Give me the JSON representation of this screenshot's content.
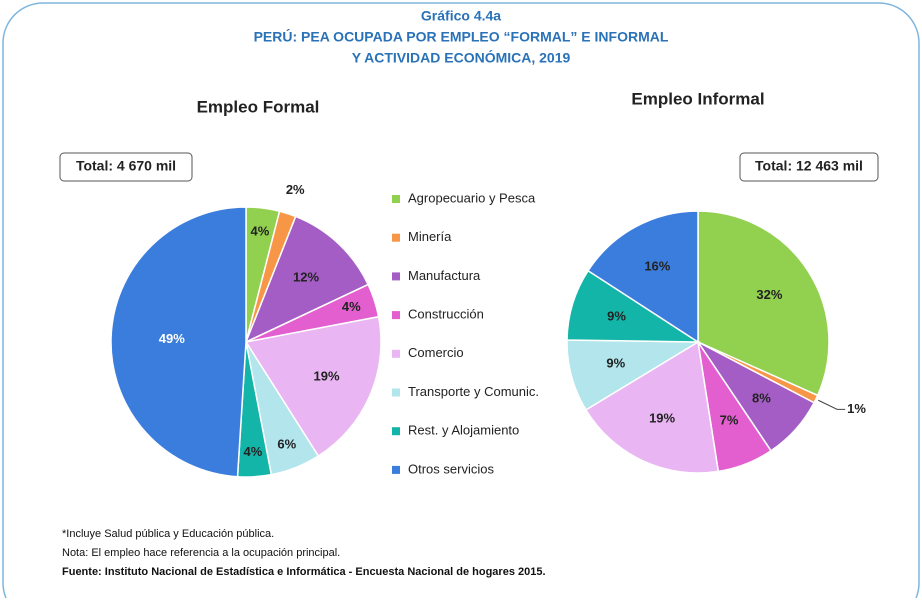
{
  "header": {
    "title_lines": [
      "Gráfico 4.4a",
      "PERÚ: PEA OCUPADA POR EMPLEO “FORMAL” E INFORMAL",
      "Y ACTIVIDAD ECONÓMICA, 2019"
    ]
  },
  "chart_data": [
    {
      "type": "pie",
      "title": "Empleo Formal",
      "total_label": "Total: 4 670 mil",
      "categories": [
        "Agropecuario y Pesca",
        "Minería",
        "Manufactura",
        "Construcción",
        "Comercio",
        "Transporte y Comunic.",
        "Rest. y Alojamiento",
        "Otros servicios"
      ],
      "colors": [
        "#92d050",
        "#f79646",
        "#a45dc4",
        "#e35fcf",
        "#e9b5f2",
        "#b2e5ec",
        "#13b5a8",
        "#3b7ddd"
      ],
      "values": [
        4,
        2,
        12,
        4,
        19,
        6,
        4,
        49
      ],
      "value_labels": [
        "4%",
        "2%",
        "12%",
        "4%",
        "19%",
        "6%",
        "4%",
        "49%"
      ]
    },
    {
      "type": "pie",
      "title": "Empleo Informal",
      "total_label": "Total: 12 463 mil",
      "values": [
        32,
        1,
        8,
        7,
        19,
        9,
        9,
        16
      ],
      "value_labels": [
        "32%",
        "1%",
        "8%",
        "7%",
        "19%",
        "9%",
        "9%",
        "16%"
      ]
    }
  ],
  "notes": [
    "*Incluye Salud pública y Educación pública.",
    "Nota: El empleo hace referencia a la ocupación principal.",
    "Fuente: Instituto Nacional de Estadística e Informática - Encuesta Nacional de hogares 2015."
  ]
}
